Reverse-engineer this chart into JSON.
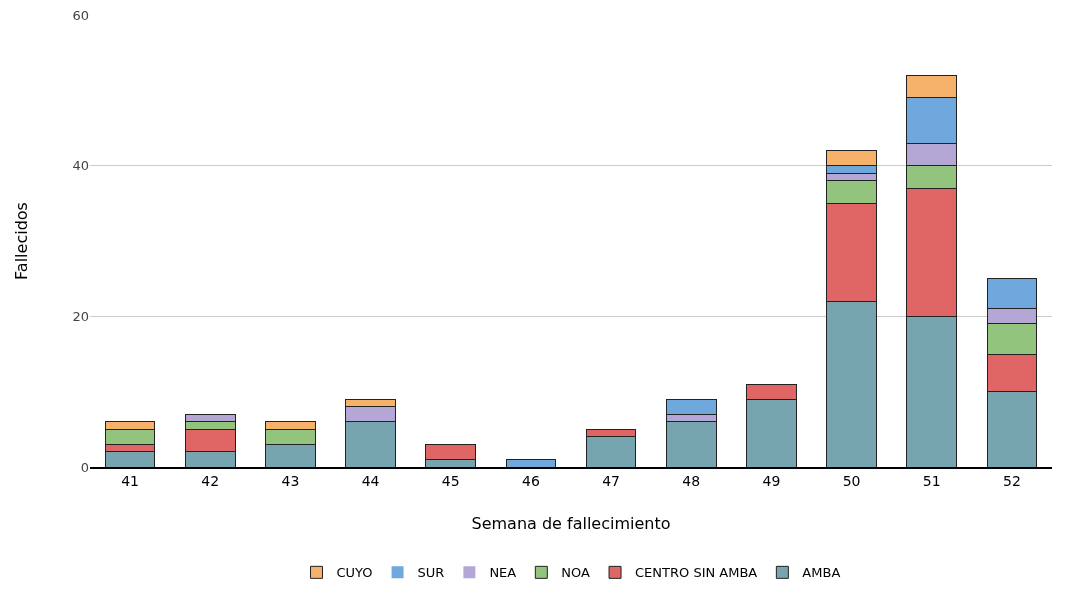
{
  "chart_data": {
    "type": "bar",
    "stacked": true,
    "xlabel": "Semana de fallecimiento",
    "ylabel": "Fallecidos",
    "categories": [
      "41",
      "42",
      "43",
      "44",
      "45",
      "46",
      "47",
      "48",
      "49",
      "50",
      "51",
      "52"
    ],
    "series": [
      {
        "name": "AMBA",
        "color": "#76a5af",
        "values": [
          2,
          2,
          3,
          6,
          1,
          0,
          4,
          6,
          9,
          22,
          20,
          10
        ]
      },
      {
        "name": "CENTRO SIN AMBA",
        "color": "#e06666",
        "values": [
          1,
          3,
          0,
          0,
          2,
          0,
          1,
          0,
          2,
          13,
          17,
          5
        ]
      },
      {
        "name": "NOA",
        "color": "#93c47d",
        "values": [
          2,
          1,
          2,
          0,
          0,
          0,
          0,
          0,
          0,
          3,
          3,
          4
        ]
      },
      {
        "name": "NEA",
        "color": "#b4a7d6",
        "values": [
          0,
          1,
          0,
          2,
          0,
          0,
          0,
          1,
          0,
          1,
          3,
          2
        ]
      },
      {
        "name": "SUR",
        "color": "#6fa8dc",
        "values": [
          0,
          0,
          0,
          0,
          0,
          1,
          0,
          2,
          0,
          1,
          6,
          4
        ]
      },
      {
        "name": "CUYO",
        "color": "#f6b26b",
        "values": [
          1,
          0,
          1,
          1,
          0,
          0,
          0,
          0,
          0,
          2,
          3,
          0
        ]
      }
    ],
    "ylim": [
      0,
      60
    ],
    "yticks": [
      0,
      20,
      40,
      60
    ],
    "grid": "y",
    "legend": "bottom"
  }
}
